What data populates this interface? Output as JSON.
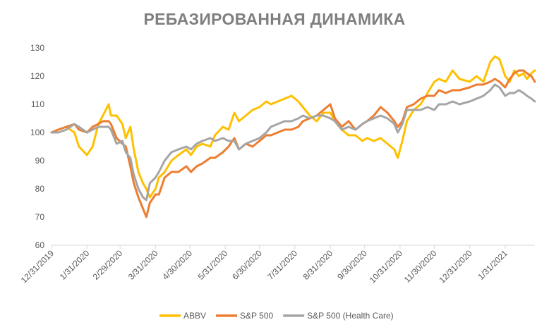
{
  "chart_data": {
    "type": "line",
    "title": "РЕБАЗИРОВАННАЯ ДИНАМИКА",
    "xlabel": "",
    "ylabel": "",
    "ylim": [
      60,
      130
    ],
    "yticks": [
      60,
      70,
      80,
      90,
      100,
      110,
      120,
      130
    ],
    "xticks": [
      "12/31/2019",
      "1/31/2020",
      "2/29/2020",
      "3/31/2020",
      "4/30/2020",
      "5/31/2020",
      "6/30/2020",
      "7/31/2020",
      "8/31/2020",
      "9/30/2020",
      "10/31/2020",
      "11/30/2020",
      "12/31/2020",
      "1/31/2021"
    ],
    "xlim": [
      "12/31/2019",
      "2/26/2021"
    ],
    "grid": false,
    "legend": "bottom",
    "series": [
      {
        "name": "ABBV",
        "color": "#ffc000",
        "points": [
          [
            "12/31/2019",
            100
          ],
          [
            "1/6/2020",
            101
          ],
          [
            "1/13/2020",
            102
          ],
          [
            "1/20/2020",
            100
          ],
          [
            "1/24/2020",
            95
          ],
          [
            "1/31/2020",
            92
          ],
          [
            "2/5/2020",
            95
          ],
          [
            "2/10/2020",
            103
          ],
          [
            "2/14/2020",
            106
          ],
          [
            "2/19/2020",
            110
          ],
          [
            "2/21/2020",
            106
          ],
          [
            "2/26/2020",
            106
          ],
          [
            "3/2/2020",
            103
          ],
          [
            "3/5/2020",
            98
          ],
          [
            "3/9/2020",
            102
          ],
          [
            "3/12/2020",
            94
          ],
          [
            "3/16/2020",
            86
          ],
          [
            "3/20/2020",
            82
          ],
          [
            "3/23/2020",
            80
          ],
          [
            "3/26/2020",
            77
          ],
          [
            "3/31/2020",
            80
          ],
          [
            "4/3/2020",
            84
          ],
          [
            "4/8/2020",
            86
          ],
          [
            "4/14/2020",
            90
          ],
          [
            "4/20/2020",
            92
          ],
          [
            "4/27/2020",
            94
          ],
          [
            "5/1/2020",
            92
          ],
          [
            "5/6/2020",
            95
          ],
          [
            "5/11/2020",
            96
          ],
          [
            "5/18/2020",
            95
          ],
          [
            "5/22/2020",
            99
          ],
          [
            "5/29/2020",
            102
          ],
          [
            "6/3/2020",
            101
          ],
          [
            "6/8/2020",
            107
          ],
          [
            "6/12/2020",
            104
          ],
          [
            "6/18/2020",
            106
          ],
          [
            "6/24/2020",
            108
          ],
          [
            "6/30/2020",
            109
          ],
          [
            "7/6/2020",
            111
          ],
          [
            "7/10/2020",
            110
          ],
          [
            "7/16/2020",
            111
          ],
          [
            "7/22/2020",
            112
          ],
          [
            "7/28/2020",
            113
          ],
          [
            "8/3/2020",
            111
          ],
          [
            "8/7/2020",
            109
          ],
          [
            "8/13/2020",
            106
          ],
          [
            "8/19/2020",
            104
          ],
          [
            "8/25/2020",
            107
          ],
          [
            "8/31/2020",
            107
          ],
          [
            "9/4/2020",
            104
          ],
          [
            "9/10/2020",
            101
          ],
          [
            "9/16/2020",
            99
          ],
          [
            "9/22/2020",
            99
          ],
          [
            "9/28/2020",
            97
          ],
          [
            "10/2/2020",
            98
          ],
          [
            "10/8/2020",
            97
          ],
          [
            "10/14/2020",
            98
          ],
          [
            "10/20/2020",
            96
          ],
          [
            "10/26/2020",
            94
          ],
          [
            "10/29/2020",
            91
          ],
          [
            "11/2/2020",
            97
          ],
          [
            "11/6/2020",
            104
          ],
          [
            "11/12/2020",
            108
          ],
          [
            "11/18/2020",
            110
          ],
          [
            "11/24/2020",
            114
          ],
          [
            "11/30/2020",
            118
          ],
          [
            "12/4/2020",
            119
          ],
          [
            "12/10/2020",
            118
          ],
          [
            "12/16/2020",
            122
          ],
          [
            "12/22/2020",
            119
          ],
          [
            "12/31/2020",
            118
          ],
          [
            "1/6/2021",
            120
          ],
          [
            "1/12/2021",
            118
          ],
          [
            "1/18/2021",
            125
          ],
          [
            "1/22/2021",
            127
          ],
          [
            "1/26/2021",
            126
          ],
          [
            "1/31/2021",
            120
          ],
          [
            "2/4/2021",
            118
          ],
          [
            "2/8/2021",
            122
          ],
          [
            "2/12/2021",
            120
          ],
          [
            "2/16/2021",
            121
          ],
          [
            "2/19/2021",
            119
          ],
          [
            "2/23/2021",
            121
          ],
          [
            "2/26/2021",
            122
          ]
        ]
      },
      {
        "name": "S&P 500",
        "color": "#ed7d31",
        "points": [
          [
            "12/31/2019",
            100
          ],
          [
            "1/6/2020",
            101
          ],
          [
            "1/13/2020",
            102
          ],
          [
            "1/20/2020",
            103
          ],
          [
            "1/24/2020",
            101
          ],
          [
            "1/31/2020",
            100
          ],
          [
            "2/5/2020",
            102
          ],
          [
            "2/10/2020",
            103
          ],
          [
            "2/14/2020",
            104
          ],
          [
            "2/19/2020",
            104
          ],
          [
            "2/21/2020",
            103
          ],
          [
            "2/26/2020",
            98
          ],
          [
            "3/2/2020",
            96
          ],
          [
            "3/5/2020",
            95
          ],
          [
            "3/9/2020",
            88
          ],
          [
            "3/12/2020",
            82
          ],
          [
            "3/16/2020",
            77
          ],
          [
            "3/20/2020",
            73
          ],
          [
            "3/23/2020",
            70
          ],
          [
            "3/26/2020",
            75
          ],
          [
            "3/31/2020",
            78
          ],
          [
            "4/3/2020",
            78
          ],
          [
            "4/8/2020",
            84
          ],
          [
            "4/14/2020",
            86
          ],
          [
            "4/20/2020",
            86
          ],
          [
            "4/27/2020",
            88
          ],
          [
            "5/1/2020",
            86
          ],
          [
            "5/6/2020",
            88
          ],
          [
            "5/11/2020",
            89
          ],
          [
            "5/18/2020",
            91
          ],
          [
            "5/22/2020",
            91
          ],
          [
            "5/29/2020",
            93
          ],
          [
            "6/3/2020",
            95
          ],
          [
            "6/8/2020",
            98
          ],
          [
            "6/12/2020",
            94
          ],
          [
            "6/18/2020",
            96
          ],
          [
            "6/24/2020",
            95
          ],
          [
            "6/30/2020",
            97
          ],
          [
            "7/6/2020",
            99
          ],
          [
            "7/10/2020",
            99
          ],
          [
            "7/16/2020",
            100
          ],
          [
            "7/22/2020",
            101
          ],
          [
            "7/28/2020",
            101
          ],
          [
            "8/3/2020",
            102
          ],
          [
            "8/7/2020",
            104
          ],
          [
            "8/13/2020",
            105
          ],
          [
            "8/19/2020",
            106
          ],
          [
            "8/25/2020",
            108
          ],
          [
            "8/31/2020",
            110
          ],
          [
            "9/4/2020",
            105
          ],
          [
            "9/10/2020",
            102
          ],
          [
            "9/16/2020",
            104
          ],
          [
            "9/22/2020",
            101
          ],
          [
            "9/28/2020",
            103
          ],
          [
            "10/2/2020",
            104
          ],
          [
            "10/8/2020",
            106
          ],
          [
            "10/14/2020",
            109
          ],
          [
            "10/20/2020",
            107
          ],
          [
            "10/26/2020",
            104
          ],
          [
            "10/29/2020",
            102
          ],
          [
            "11/2/2020",
            104
          ],
          [
            "11/6/2020",
            109
          ],
          [
            "11/12/2020",
            110
          ],
          [
            "11/18/2020",
            112
          ],
          [
            "11/24/2020",
            113
          ],
          [
            "11/30/2020",
            113
          ],
          [
            "12/4/2020",
            115
          ],
          [
            "12/10/2020",
            114
          ],
          [
            "12/16/2020",
            115
          ],
          [
            "12/22/2020",
            115
          ],
          [
            "12/31/2020",
            116
          ],
          [
            "1/6/2021",
            117
          ],
          [
            "1/12/2021",
            117
          ],
          [
            "1/18/2021",
            118
          ],
          [
            "1/22/2021",
            119
          ],
          [
            "1/26/2021",
            118
          ],
          [
            "1/31/2021",
            116
          ],
          [
            "2/4/2021",
            119
          ],
          [
            "2/8/2021",
            121
          ],
          [
            "2/12/2021",
            122
          ],
          [
            "2/16/2021",
            122
          ],
          [
            "2/19/2021",
            121
          ],
          [
            "2/23/2021",
            120
          ],
          [
            "2/26/2021",
            118
          ]
        ]
      },
      {
        "name": "S&P 500 (Health Care)",
        "color": "#a5a5a5",
        "points": [
          [
            "12/31/2019",
            100
          ],
          [
            "1/6/2020",
            100
          ],
          [
            "1/13/2020",
            101
          ],
          [
            "1/20/2020",
            103
          ],
          [
            "1/24/2020",
            102
          ],
          [
            "1/31/2020",
            100
          ],
          [
            "2/5/2020",
            101
          ],
          [
            "2/10/2020",
            102
          ],
          [
            "2/14/2020",
            102
          ],
          [
            "2/19/2020",
            102
          ],
          [
            "2/21/2020",
            101
          ],
          [
            "2/26/2020",
            96
          ],
          [
            "3/2/2020",
            97
          ],
          [
            "3/5/2020",
            93
          ],
          [
            "3/9/2020",
            91
          ],
          [
            "3/12/2020",
            85
          ],
          [
            "3/16/2020",
            80
          ],
          [
            "3/20/2020",
            77
          ],
          [
            "3/23/2020",
            76
          ],
          [
            "3/26/2020",
            82
          ],
          [
            "3/31/2020",
            84
          ],
          [
            "4/3/2020",
            86
          ],
          [
            "4/8/2020",
            90
          ],
          [
            "4/14/2020",
            93
          ],
          [
            "4/20/2020",
            94
          ],
          [
            "4/27/2020",
            95
          ],
          [
            "5/1/2020",
            94
          ],
          [
            "5/6/2020",
            96
          ],
          [
            "5/11/2020",
            97
          ],
          [
            "5/18/2020",
            98
          ],
          [
            "5/22/2020",
            97
          ],
          [
            "5/29/2020",
            98
          ],
          [
            "6/3/2020",
            97
          ],
          [
            "6/8/2020",
            97
          ],
          [
            "6/12/2020",
            94
          ],
          [
            "6/18/2020",
            96
          ],
          [
            "6/24/2020",
            97
          ],
          [
            "6/30/2020",
            98
          ],
          [
            "7/6/2020",
            100
          ],
          [
            "7/10/2020",
            102
          ],
          [
            "7/16/2020",
            103
          ],
          [
            "7/22/2020",
            104
          ],
          [
            "7/28/2020",
            104
          ],
          [
            "8/3/2020",
            105
          ],
          [
            "8/7/2020",
            106
          ],
          [
            "8/13/2020",
            105
          ],
          [
            "8/19/2020",
            106
          ],
          [
            "8/25/2020",
            106
          ],
          [
            "8/31/2020",
            105
          ],
          [
            "9/4/2020",
            104
          ],
          [
            "9/10/2020",
            101
          ],
          [
            "9/16/2020",
            102
          ],
          [
            "9/22/2020",
            101
          ],
          [
            "9/28/2020",
            103
          ],
          [
            "10/2/2020",
            104
          ],
          [
            "10/8/2020",
            105
          ],
          [
            "10/14/2020",
            106
          ],
          [
            "10/20/2020",
            105
          ],
          [
            "10/26/2020",
            103
          ],
          [
            "10/29/2020",
            100
          ],
          [
            "11/2/2020",
            103
          ],
          [
            "11/6/2020",
            108
          ],
          [
            "11/12/2020",
            108
          ],
          [
            "11/18/2020",
            108
          ],
          [
            "11/24/2020",
            109
          ],
          [
            "11/30/2020",
            108
          ],
          [
            "12/4/2020",
            110
          ],
          [
            "12/10/2020",
            110
          ],
          [
            "12/16/2020",
            111
          ],
          [
            "12/22/2020",
            110
          ],
          [
            "12/31/2020",
            111
          ],
          [
            "1/6/2021",
            112
          ],
          [
            "1/12/2021",
            113
          ],
          [
            "1/18/2021",
            115
          ],
          [
            "1/22/2021",
            117
          ],
          [
            "1/26/2021",
            116
          ],
          [
            "1/31/2021",
            113
          ],
          [
            "2/4/2021",
            114
          ],
          [
            "2/8/2021",
            114
          ],
          [
            "2/12/2021",
            115
          ],
          [
            "2/16/2021",
            114
          ],
          [
            "2/19/2021",
            113
          ],
          [
            "2/23/2021",
            112
          ],
          [
            "2/26/2021",
            111
          ]
        ]
      }
    ]
  }
}
